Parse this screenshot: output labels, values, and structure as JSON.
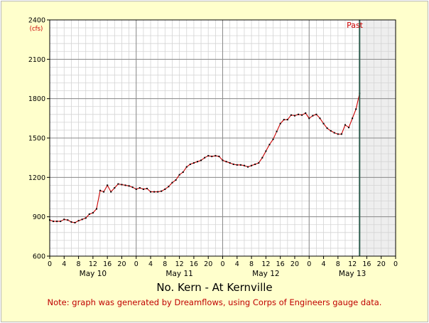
{
  "chart_data": {
    "type": "line",
    "title": "No. Kern - At Kernville",
    "note": "Note: graph was generated by Dreamflows, using Corps of Engineers gauge data.",
    "ylabel": "(cfs)",
    "ylim": [
      600,
      2400
    ],
    "yticks": [
      600,
      900,
      1200,
      1500,
      1800,
      2100,
      2400
    ],
    "x_hour_range": [
      0,
      96
    ],
    "x_tick_hours": [
      0,
      4,
      8,
      12,
      16,
      20,
      24,
      28,
      32,
      36,
      40,
      44,
      48,
      52,
      56,
      60,
      64,
      68,
      72,
      76,
      80,
      84,
      88,
      92,
      96
    ],
    "x_tick_labels": [
      "0",
      "4",
      "8",
      "12",
      "16",
      "20",
      "0",
      "4",
      "8",
      "12",
      "16",
      "20",
      "0",
      "4",
      "8",
      "12",
      "16",
      "20",
      "0",
      "4",
      "8",
      "12",
      "16",
      "20",
      "0"
    ],
    "day_labels": [
      {
        "label": "May 10",
        "hour": 12
      },
      {
        "label": "May 11",
        "hour": 36
      },
      {
        "label": "May 12",
        "hour": 60
      },
      {
        "label": "May 13",
        "hour": 84
      }
    ],
    "past_marker": {
      "label": "Past",
      "hour": 86
    },
    "grid": true,
    "colors": {
      "line": "#cc0000",
      "marker": "#000000",
      "past_line": "#2e5e4e",
      "future_shade": "#eeeeee",
      "text_red": "#cc0000"
    },
    "series": [
      {
        "x": [
          0,
          1,
          2,
          3,
          4,
          5,
          6,
          7,
          8,
          9,
          10,
          11,
          12,
          13,
          14,
          15,
          16,
          17,
          18,
          19,
          20,
          21,
          22,
          23,
          24,
          25,
          26,
          27,
          28,
          29,
          30,
          31,
          32,
          33,
          34,
          35,
          36,
          37,
          38,
          39,
          40,
          41,
          42,
          43,
          44,
          45,
          46,
          47,
          48,
          49,
          50,
          51,
          52,
          53,
          54,
          55,
          56,
          57,
          58,
          59,
          60,
          61,
          62,
          63,
          64,
          65,
          66,
          67,
          68,
          69,
          70,
          71,
          72,
          73,
          74,
          75,
          76,
          77,
          78,
          79,
          80,
          81,
          82,
          83,
          84,
          85,
          86
        ],
        "y": [
          875,
          865,
          865,
          865,
          880,
          875,
          860,
          855,
          870,
          880,
          890,
          920,
          930,
          960,
          1100,
          1090,
          1140,
          1090,
          1120,
          1150,
          1145,
          1140,
          1135,
          1125,
          1110,
          1120,
          1110,
          1115,
          1090,
          1090,
          1090,
          1095,
          1110,
          1130,
          1160,
          1180,
          1220,
          1240,
          1280,
          1300,
          1310,
          1320,
          1330,
          1350,
          1365,
          1360,
          1365,
          1360,
          1330,
          1320,
          1310,
          1300,
          1295,
          1295,
          1290,
          1280,
          1290,
          1300,
          1310,
          1350,
          1400,
          1450,
          1490,
          1550,
          1610,
          1640,
          1640,
          1675,
          1670,
          1680,
          1675,
          1690,
          1650,
          1670,
          1680,
          1650,
          1610,
          1575,
          1555,
          1540,
          1530,
          1530,
          1600,
          1580,
          1650,
          1720,
          1840
        ]
      }
    ]
  }
}
